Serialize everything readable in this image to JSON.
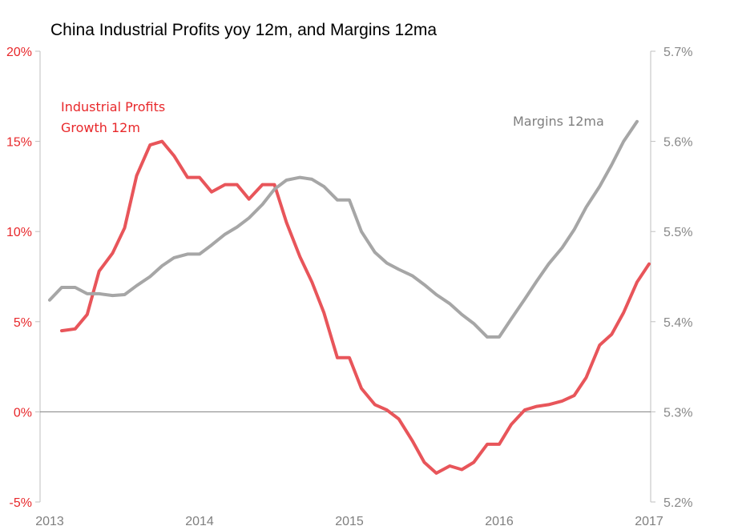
{
  "chart_data": {
    "type": "line",
    "title": "China Industrial Profits yoy 12m, and Margins 12ma",
    "x_ticks": [
      "2013",
      "2014",
      "2015",
      "2016",
      "2017"
    ],
    "xlim": [
      2013.0,
      2017.0
    ],
    "y_left": {
      "ticks": [
        "20%",
        "15%",
        "10%",
        "5%",
        "0%",
        "-5%"
      ],
      "ylim": [
        -5,
        20
      ],
      "unit": "%",
      "color": "#e8282b"
    },
    "y_right": {
      "ticks": [
        "5.7%",
        "5.6%",
        "5.5%",
        "5.4%",
        "5.3%",
        "5.2%"
      ],
      "ylim": [
        5.2,
        5.7
      ],
      "unit": "%",
      "color": "#888888"
    },
    "series": [
      {
        "name": "Industrial Profits Growth 12m",
        "label_lines": [
          "Industrial Profits",
          "Growth 12m"
        ],
        "axis": "left",
        "color": "#e8555a",
        "points": [
          [
            2013.08,
            4.5
          ],
          [
            2013.17,
            4.6
          ],
          [
            2013.25,
            5.4
          ],
          [
            2013.33,
            7.8
          ],
          [
            2013.42,
            8.8
          ],
          [
            2013.5,
            10.2
          ],
          [
            2013.58,
            13.1
          ],
          [
            2013.67,
            14.8
          ],
          [
            2013.75,
            15.0
          ],
          [
            2013.83,
            14.2
          ],
          [
            2013.92,
            13.0
          ],
          [
            2014.0,
            13.0
          ],
          [
            2014.08,
            12.2
          ],
          [
            2014.17,
            12.6
          ],
          [
            2014.25,
            12.6
          ],
          [
            2014.33,
            11.8
          ],
          [
            2014.42,
            12.6
          ],
          [
            2014.5,
            12.6
          ],
          [
            2014.58,
            10.5
          ],
          [
            2014.67,
            8.6
          ],
          [
            2014.75,
            7.2
          ],
          [
            2014.83,
            5.5
          ],
          [
            2014.92,
            3.0
          ],
          [
            2015.0,
            3.0
          ],
          [
            2015.08,
            1.3
          ],
          [
            2015.17,
            0.4
          ],
          [
            2015.25,
            0.1
          ],
          [
            2015.33,
            -0.4
          ],
          [
            2015.42,
            -1.6
          ],
          [
            2015.5,
            -2.8
          ],
          [
            2015.58,
            -3.4
          ],
          [
            2015.67,
            -3.0
          ],
          [
            2015.75,
            -3.2
          ],
          [
            2015.83,
            -2.8
          ],
          [
            2015.92,
            -1.8
          ],
          [
            2016.0,
            -1.8
          ],
          [
            2016.08,
            -0.7
          ],
          [
            2016.17,
            0.1
          ],
          [
            2016.25,
            0.3
          ],
          [
            2016.33,
            0.4
          ],
          [
            2016.42,
            0.6
          ],
          [
            2016.5,
            0.9
          ],
          [
            2016.58,
            1.9
          ],
          [
            2016.67,
            3.7
          ],
          [
            2016.75,
            4.3
          ],
          [
            2016.83,
            5.5
          ],
          [
            2016.92,
            7.2
          ],
          [
            2017.0,
            8.2
          ]
        ]
      },
      {
        "name": "Margins 12ma",
        "label_lines": [
          "Margins 12ma"
        ],
        "axis": "right",
        "color": "#a6a6a6",
        "points": [
          [
            2013.0,
            5.424
          ],
          [
            2013.08,
            5.438
          ],
          [
            2013.17,
            5.438
          ],
          [
            2013.25,
            5.431
          ],
          [
            2013.33,
            5.431
          ],
          [
            2013.42,
            5.429
          ],
          [
            2013.5,
            5.43
          ],
          [
            2013.58,
            5.44
          ],
          [
            2013.67,
            5.45
          ],
          [
            2013.75,
            5.462
          ],
          [
            2013.83,
            5.471
          ],
          [
            2013.92,
            5.475
          ],
          [
            2014.0,
            5.475
          ],
          [
            2014.08,
            5.485
          ],
          [
            2014.17,
            5.497
          ],
          [
            2014.25,
            5.505
          ],
          [
            2014.33,
            5.515
          ],
          [
            2014.42,
            5.53
          ],
          [
            2014.5,
            5.547
          ],
          [
            2014.58,
            5.557
          ],
          [
            2014.67,
            5.56
          ],
          [
            2014.75,
            5.558
          ],
          [
            2014.83,
            5.55
          ],
          [
            2014.92,
            5.535
          ],
          [
            2015.0,
            5.535
          ],
          [
            2015.08,
            5.5
          ],
          [
            2015.17,
            5.477
          ],
          [
            2015.25,
            5.465
          ],
          [
            2015.33,
            5.458
          ],
          [
            2015.42,
            5.451
          ],
          [
            2015.5,
            5.441
          ],
          [
            2015.58,
            5.43
          ],
          [
            2015.67,
            5.42
          ],
          [
            2015.75,
            5.408
          ],
          [
            2015.83,
            5.398
          ],
          [
            2015.92,
            5.383
          ],
          [
            2016.0,
            5.383
          ],
          [
            2016.08,
            5.403
          ],
          [
            2016.17,
            5.425
          ],
          [
            2016.25,
            5.445
          ],
          [
            2016.33,
            5.464
          ],
          [
            2016.42,
            5.482
          ],
          [
            2016.5,
            5.502
          ],
          [
            2016.58,
            5.527
          ],
          [
            2016.67,
            5.55
          ],
          [
            2016.75,
            5.574
          ],
          [
            2016.83,
            5.6
          ],
          [
            2016.92,
            5.622
          ]
        ]
      }
    ],
    "grid": false,
    "legend": "inline labels"
  }
}
